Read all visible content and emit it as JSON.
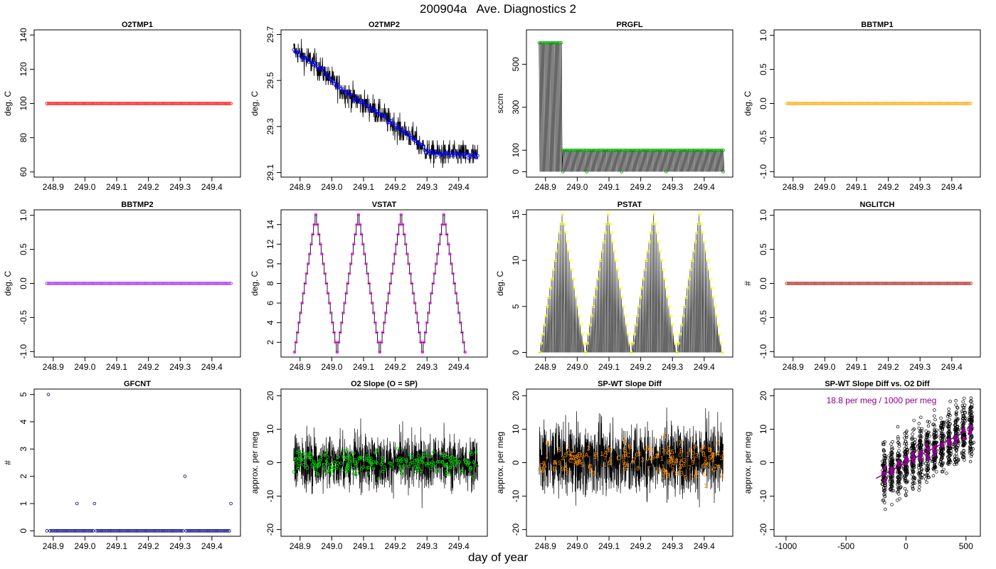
{
  "figure": {
    "title": "200904a   Ave. Diagnostics 2",
    "xlabel": "day of year"
  },
  "chart_data": [
    {
      "id": "o2tmp1",
      "type": "scatter",
      "title": "O2TMP1",
      "ylabel": "deg. C",
      "xlim": [
        248.84,
        249.49
      ],
      "xticks": [
        "248.9",
        "249.0",
        "249.1",
        "249.2",
        "249.3",
        "249.4"
      ],
      "ylim": [
        57,
        143
      ],
      "yticks": [
        "60",
        "80",
        "100",
        "120",
        "140"
      ],
      "marker_color": "#ff0000",
      "series": [
        {
          "name": "O2TMP1",
          "x_range": [
            248.88,
            249.46
          ],
          "n_points": 120,
          "value": 100
        }
      ]
    },
    {
      "id": "o2tmp2",
      "type": "line",
      "title": "O2TMP2",
      "ylabel": "deg. C",
      "xlim": [
        248.84,
        249.49
      ],
      "xticks": [
        "248.9",
        "249.0",
        "249.1",
        "249.2",
        "249.3",
        "249.4"
      ],
      "ylim": [
        29.08,
        29.72
      ],
      "yticks": [
        "29.1",
        "29.3",
        "29.5",
        "29.7"
      ],
      "marker_color": "#0000ff",
      "series": [
        {
          "name": "O2TMP2 average",
          "x": [
            248.88,
            248.95,
            249.0,
            249.05,
            249.1,
            249.15,
            249.2,
            249.25,
            249.3,
            249.35,
            249.4,
            249.46
          ],
          "values": [
            29.63,
            29.57,
            29.5,
            29.44,
            29.4,
            29.36,
            29.3,
            29.26,
            29.19,
            29.18,
            29.18,
            29.17
          ]
        }
      ]
    },
    {
      "id": "prgfl",
      "type": "line",
      "title": "PRGFL",
      "ylabel": "sccm",
      "xlim": [
        248.84,
        249.49
      ],
      "xticks": [
        "248.9",
        "249.0",
        "249.1",
        "249.2",
        "249.3",
        "249.4"
      ],
      "ylim": [
        -25,
        660
      ],
      "yticks": [
        "0",
        "100",
        "300",
        "500"
      ],
      "marker_color": "#00aa00",
      "series": [
        {
          "name": "PRGFL",
          "x": [
            248.88,
            248.95,
            248.951,
            249.46
          ],
          "values": [
            600,
            600,
            100,
            100
          ]
        }
      ]
    },
    {
      "id": "bbtmp1",
      "type": "scatter",
      "title": "BBTMP1",
      "ylabel": "deg. C",
      "xlim": [
        248.84,
        249.49
      ],
      "xticks": [
        "248.9",
        "249.0",
        "249.1",
        "249.2",
        "249.3",
        "249.4"
      ],
      "ylim": [
        -1.08,
        1.08
      ],
      "yticks": [
        "-1.0",
        "-0.5",
        "0.0",
        "0.5",
        "1.0"
      ],
      "marker_color": "#ffa500",
      "series": [
        {
          "name": "BBTMP1",
          "x_range": [
            248.88,
            249.46
          ],
          "n_points": 120,
          "value": 0
        }
      ]
    },
    {
      "id": "bbtmp2",
      "type": "scatter",
      "title": "BBTMP2",
      "ylabel": "deg. C",
      "xlim": [
        248.84,
        249.49
      ],
      "xticks": [
        "248.9",
        "249.0",
        "249.1",
        "249.2",
        "249.3",
        "249.4"
      ],
      "ylim": [
        -1.08,
        1.08
      ],
      "yticks": [
        "-1.0",
        "-0.5",
        "0.0",
        "0.5",
        "1.0"
      ],
      "marker_color": "#a020f0",
      "series": [
        {
          "name": "BBTMP2",
          "x_range": [
            248.88,
            249.46
          ],
          "n_points": 120,
          "value": 0
        }
      ]
    },
    {
      "id": "vstat",
      "type": "line",
      "title": "VSTAT",
      "ylabel": "deg. C",
      "xlim": [
        248.84,
        249.49
      ],
      "xticks": [
        "248.9",
        "249.0",
        "249.1",
        "249.2",
        "249.3",
        "249.4"
      ],
      "ylim": [
        0.5,
        15.5
      ],
      "yticks": [
        "2",
        "4",
        "6",
        "8",
        "10",
        "12",
        "14"
      ],
      "marker_color": "#ff00ff",
      "series": [
        {
          "name": "VSTAT",
          "x_start": 248.88,
          "x_step": 0.0048,
          "cycle_min": 1,
          "cycle_max": 15,
          "n_cycles": 4
        }
      ]
    },
    {
      "id": "pstat",
      "type": "line",
      "title": "PSTAT",
      "ylabel": "deg. C",
      "xlim": [
        248.84,
        249.49
      ],
      "xticks": [
        "248.9",
        "249.0",
        "249.1",
        "249.2",
        "249.3",
        "249.4"
      ],
      "ylim": [
        -0.5,
        15.5
      ],
      "yticks": [
        "0",
        "5",
        "10",
        "15"
      ],
      "marker_color": "#ffff00",
      "series": [
        {
          "name": "PSTAT",
          "x_start": 248.88,
          "x_step": 0.0048,
          "cycle_min": 0,
          "cycle_max": 15,
          "n_cycles": 4
        }
      ]
    },
    {
      "id": "nglitch",
      "type": "scatter",
      "title": "NGLITCH",
      "ylabel": "#",
      "xlim": [
        248.84,
        249.49
      ],
      "xticks": [
        "248.9",
        "249.0",
        "249.1",
        "249.2",
        "249.3",
        "249.4"
      ],
      "ylim": [
        -1.08,
        1.08
      ],
      "yticks": [
        "-1.0",
        "-0.5",
        "0.0",
        "0.5",
        "1.0"
      ],
      "marker_color": "#b22222",
      "series": [
        {
          "name": "NGLITCH",
          "x_range": [
            248.88,
            249.46
          ],
          "n_points": 120,
          "value": 0
        }
      ]
    },
    {
      "id": "gfcnt",
      "type": "scatter",
      "title": "GFCNT",
      "ylabel": "#",
      "xlim": [
        248.84,
        249.49
      ],
      "xticks": [
        "248.9",
        "249.0",
        "249.1",
        "249.2",
        "249.3",
        "249.4"
      ],
      "ylim": [
        -0.2,
        5.2
      ],
      "yticks": [
        "0",
        "1",
        "2",
        "3",
        "4",
        "5"
      ],
      "marker_color": "#00008b",
      "series": [
        {
          "name": "GFCNT baseline",
          "x_range": [
            248.88,
            249.46
          ],
          "n_points": 120,
          "value": 0
        },
        {
          "name": "GFCNT events",
          "x": [
            248.885,
            248.975,
            249.03,
            249.315,
            249.46
          ],
          "values": [
            5,
            1,
            1,
            2,
            1
          ]
        }
      ]
    },
    {
      "id": "o2slope",
      "type": "line",
      "title": "O2 Slope (O = SP)",
      "ylabel": "approx. per meg",
      "xlim": [
        248.84,
        249.49
      ],
      "xticks": [
        "248.9",
        "249.0",
        "249.1",
        "249.2",
        "249.3",
        "249.4"
      ],
      "ylim": [
        -22,
        22
      ],
      "yticks": [
        "-20",
        "-10",
        "0",
        "10",
        "20"
      ],
      "marker_color": "#00cc00",
      "series": [
        {
          "name": "O2 Slope",
          "x_range": [
            248.88,
            249.46
          ],
          "mean": 0,
          "spread": 6
        }
      ]
    },
    {
      "id": "spwtslope",
      "type": "line",
      "title": "SP-WT Slope Diff",
      "ylabel": "approx. per meg",
      "xlim": [
        248.84,
        249.49
      ],
      "xticks": [
        "248.9",
        "249.0",
        "249.1",
        "249.2",
        "249.3",
        "249.4"
      ],
      "ylim": [
        -22,
        22
      ],
      "yticks": [
        "-20",
        "-10",
        "0",
        "10",
        "20"
      ],
      "marker_color": "#ff8c00",
      "series": [
        {
          "name": "SP-WT Slope Diff",
          "x_range": [
            248.88,
            249.46
          ],
          "mean": 1,
          "spread": 8
        }
      ],
      "labels": [
        "3",
        "7",
        "9",
        "B",
        "1",
        "C",
        "0",
        "A",
        "8",
        "5"
      ]
    },
    {
      "id": "spwtvso2",
      "type": "scatter",
      "title": "SP-WT Slope Diff vs. O2 Diff",
      "ylabel": "approx. per meg",
      "xlim": [
        -1100,
        620
      ],
      "xticks": [
        "-1000",
        "-500",
        "0",
        "500"
      ],
      "ylim": [
        -22,
        22
      ],
      "yticks": [
        "-20",
        "-10",
        "0",
        "10",
        "20"
      ],
      "marker_color": "#8b008b",
      "annotation": "18.8 per meg / 1000 per meg",
      "fit": {
        "slope_per_1000": 18.8,
        "x_range": [
          -250,
          500
        ]
      },
      "series": [
        {
          "name": "Diff pairs",
          "x_range": [
            -200,
            560
          ],
          "spread": 9
        }
      ]
    }
  ]
}
